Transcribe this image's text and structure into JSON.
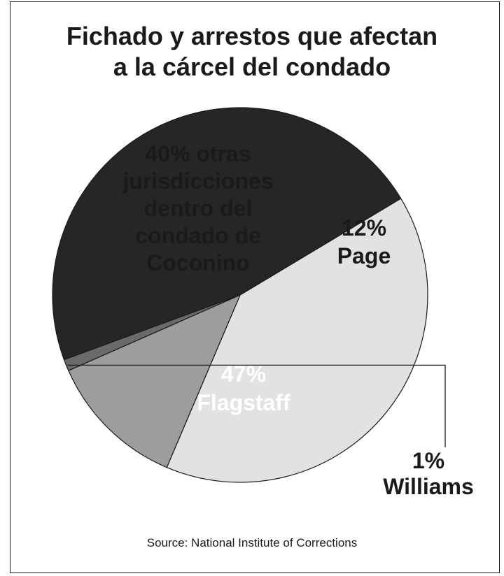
{
  "chart_data": {
    "type": "pie",
    "title": [
      "Fichado y arrestos que afectan",
      "a la cárcel del condado"
    ],
    "slices": [
      {
        "value": 40,
        "pct_label": "40% otras",
        "name_lines": [
          "jurisdicciones",
          "dentro del",
          "condado de",
          "Coconino"
        ],
        "color": "#e2e2e2",
        "text_color": "#1a1a1a"
      },
      {
        "value": 12,
        "pct_label": "12%",
        "name_lines": [
          "Page"
        ],
        "color": "#9d9d9d",
        "text_color": "#1a1a1a"
      },
      {
        "value": 1,
        "pct_label": "1%",
        "name_lines": [
          "Williams"
        ],
        "color": "#6a6a6a",
        "text_color": "#1a1a1a"
      },
      {
        "value": 47,
        "pct_label": "47%",
        "name_lines": [
          "Flagstaff"
        ],
        "color": "#262626",
        "text_color": "#ffffff"
      }
    ]
  },
  "source": "Source: National Institute of Corrections"
}
